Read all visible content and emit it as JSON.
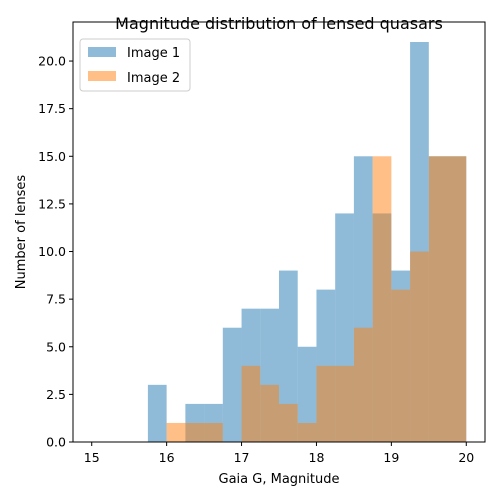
{
  "chart_data": {
    "type": "bar",
    "title": "Magnitude distribution of lensed quasars",
    "xlabel": "Gaia G, Magnitude",
    "ylabel": "Number of lenses",
    "xlim": [
      14.75,
      20.25
    ],
    "ylim": [
      0,
      22.05
    ],
    "bin_edges": [
      15.0,
      15.25,
      15.5,
      15.75,
      16.0,
      16.25,
      16.5,
      16.75,
      17.0,
      17.25,
      17.5,
      17.75,
      18.0,
      18.25,
      18.5,
      18.75,
      19.0,
      19.25,
      19.5,
      19.75,
      20.0
    ],
    "x_ticks": [
      15,
      16,
      17,
      18,
      19,
      20
    ],
    "x_tick_labels": [
      "15",
      "16",
      "17",
      "18",
      "19",
      "20"
    ],
    "y_ticks": [
      0,
      2.5,
      5,
      7.5,
      10,
      12.5,
      15,
      17.5,
      20
    ],
    "y_tick_labels": [
      "0.0",
      "2.5",
      "5.0",
      "7.5",
      "10.0",
      "12.5",
      "15.0",
      "17.5",
      "20.0"
    ],
    "legend_position": "top-left",
    "series": [
      {
        "name": "Image 1",
        "color": "#1f77b4",
        "values": [
          0,
          0,
          0,
          3,
          0,
          2,
          2,
          6,
          7,
          7,
          9,
          5,
          8,
          12,
          15,
          12,
          9,
          21,
          15,
          15
        ]
      },
      {
        "name": "Image 2",
        "color": "#ff7f0e",
        "values": [
          0,
          0,
          0,
          0,
          1,
          1,
          1,
          0,
          4,
          3,
          2,
          1,
          4,
          4,
          6,
          15,
          8,
          10,
          15,
          15
        ]
      }
    ]
  }
}
